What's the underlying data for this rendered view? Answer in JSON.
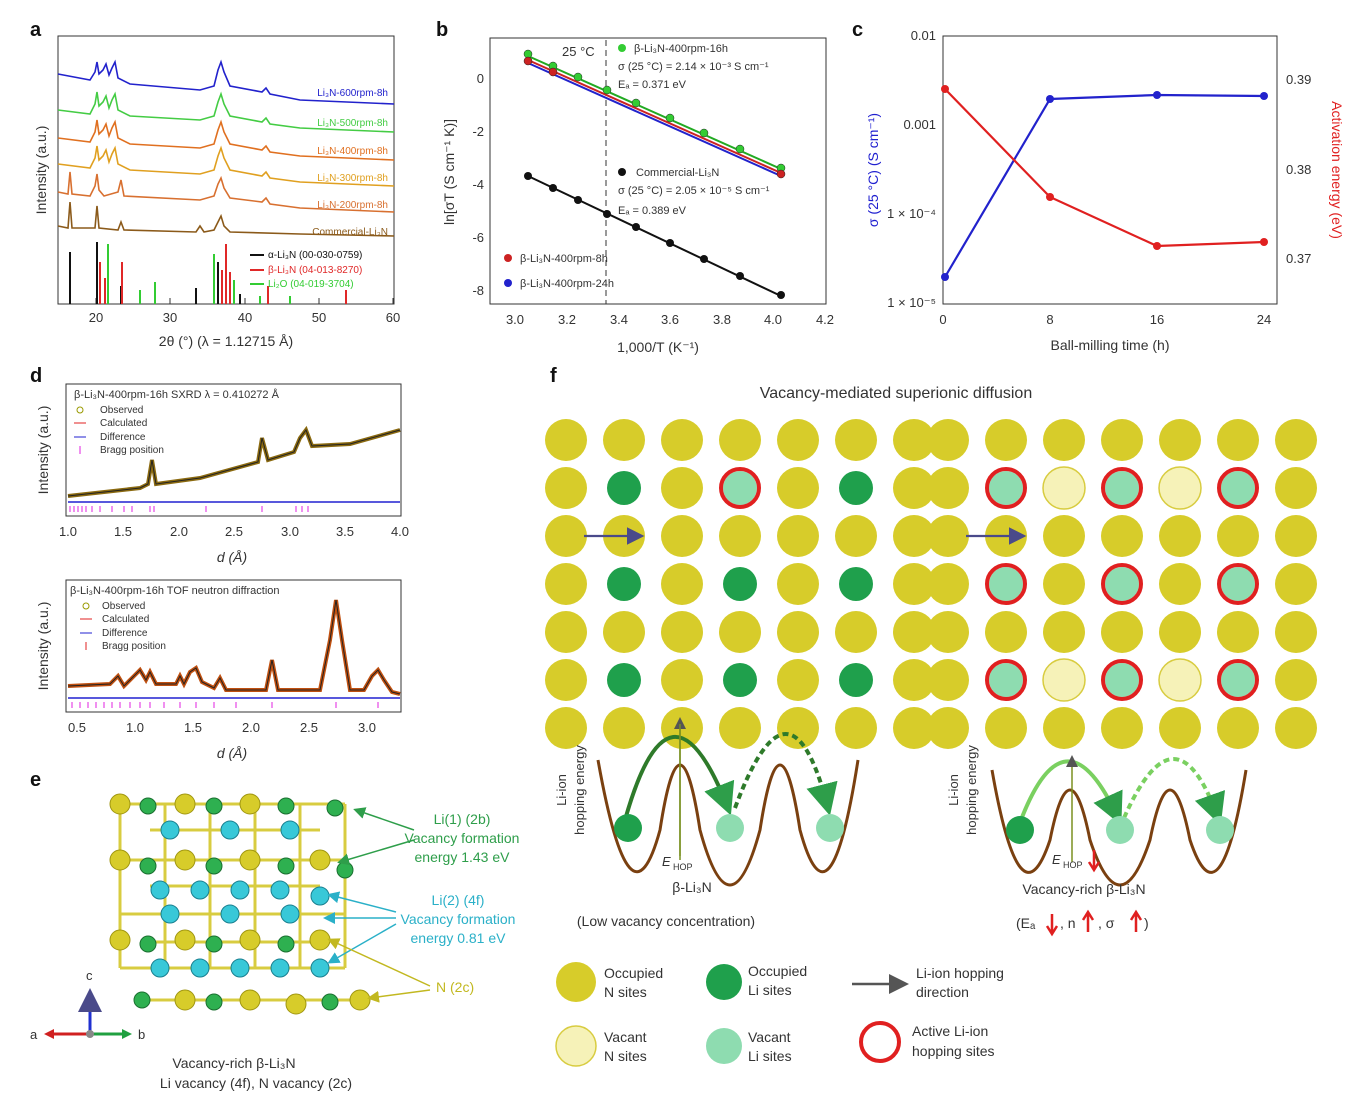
{
  "panel_labels": {
    "a": "a",
    "b": "b",
    "c": "c",
    "d": "d",
    "e": "e",
    "f": "f"
  },
  "colors": {
    "li_yellow": "#d9c92a",
    "li_green": "#1fa04c",
    "li_lightgreen": "#8edcb0",
    "red": "#e02020",
    "blue": "#2020d0",
    "brown": "#8b4513"
  },
  "panel_a": {
    "ylabel": "Intensity (a.u.)",
    "xlabel": "2θ (°) (λ = 1.12715 Å)",
    "ticks": [
      "20",
      "30",
      "40",
      "50",
      "60"
    ],
    "series_labels": [
      "Li₃N-600rpm-8h",
      "Li₃N-500rpm-8h",
      "Li₃N-400rpm-8h",
      "Li₃N-300rpm-8h",
      "Li₃N-200rpm-8h",
      "Commercial-Li₃N"
    ],
    "ref_labels": [
      "α-Li₃N (00-030-0759)",
      "β-Li₃N (04-013-8270)",
      "Li₂O (04-019-3704)"
    ]
  },
  "panel_b": {
    "ylabel": "ln[σT (S cm⁻¹ K)]",
    "xlabel": "1,000/T (K⁻¹)",
    "xticks": [
      "3.0",
      "3.2",
      "3.4",
      "3.6",
      "3.8",
      "4.0",
      "4.2"
    ],
    "yticks": [
      "0",
      "-2",
      "-4",
      "-6",
      "-8"
    ],
    "temp_label": "25 °C",
    "top_legend": {
      "name": "β-Li₃N-400rpm-16h",
      "sigma": "σ (25 °C) = 2.14 × 10⁻³ S cm⁻¹",
      "ea": "Eₐ = 0.371 eV"
    },
    "mid_legend": {
      "name": "Commercial-Li₃N",
      "sigma": "σ (25 °C) = 2.05 × 10⁻⁵ S cm⁻¹",
      "ea": "Eₐ = 0.389 eV"
    },
    "bottom_legend": [
      "β-Li₃N-400rpm-8h",
      "β-Li₃N-400rpm-24h"
    ]
  },
  "panel_c": {
    "ylabel_left": "σ (25 °C) (S cm⁻¹)",
    "ylabel_right": "Activation energy (eV)",
    "xlabel": "Ball-milling time (h)",
    "xticks": [
      "0",
      "8",
      "16",
      "24"
    ],
    "yticks_left": [
      "0.01",
      "0.001",
      "1 × 10⁻⁴",
      "1 × 10⁻⁵"
    ],
    "yticks_right": [
      "0.39",
      "0.38",
      "0.37"
    ]
  },
  "panel_d": {
    "top_title": "β-Li₃N-400rpm-16h  SXRD λ = 0.410272 Å",
    "bottom_title": "β-Li₃N-400rpm-16h TOF neutron diffraction",
    "legend": [
      "Observed",
      "Calculated",
      "Difference",
      "Bragg position"
    ],
    "ylabel": "Intensity (a.u.)",
    "xlabel": "d (Å)",
    "top_ticks": [
      "1.0",
      "1.5",
      "2.0",
      "2.5",
      "3.0",
      "3.5",
      "4.0"
    ],
    "bottom_ticks": [
      "0.5",
      "1.0",
      "1.5",
      "2.0",
      "2.5",
      "3.0"
    ]
  },
  "panel_e": {
    "li1": [
      "Li(1) (2b)",
      "Vacancy formation",
      "energy 1.43 eV"
    ],
    "li2": [
      "Li(2) (4f)",
      "Vacancy formation",
      "energy 0.81 eV"
    ],
    "n": "N (2c)",
    "caption": [
      "Vacancy-rich β-Li₃N",
      "Li vacancy (4f), N vacancy (2c)"
    ],
    "axes": {
      "c": "c",
      "b": "b",
      "a": "a"
    }
  },
  "panel_f": {
    "title": "Vacancy-mediated superionic diffusion",
    "energy_ylabel": [
      "Li-ion",
      "hopping energy"
    ],
    "ehop": "E",
    "ehop_sub": "HOP",
    "left_caption": [
      "β-Li₃N",
      "(Low vacancy concentration)"
    ],
    "right_caption": [
      "Vacancy-rich β-Li₃N",
      "(Eₐ",
      ", n",
      ", σ",
      ")"
    ],
    "legend": [
      [
        "Occupied",
        "N sites"
      ],
      [
        "Occupied",
        "Li sites"
      ],
      [
        "Li-ion hopping",
        "direction"
      ],
      [
        "Vacant",
        "N sites"
      ],
      [
        "Vacant",
        "Li sites"
      ],
      [
        "Active Li-ion",
        "hopping sites"
      ]
    ]
  }
}
